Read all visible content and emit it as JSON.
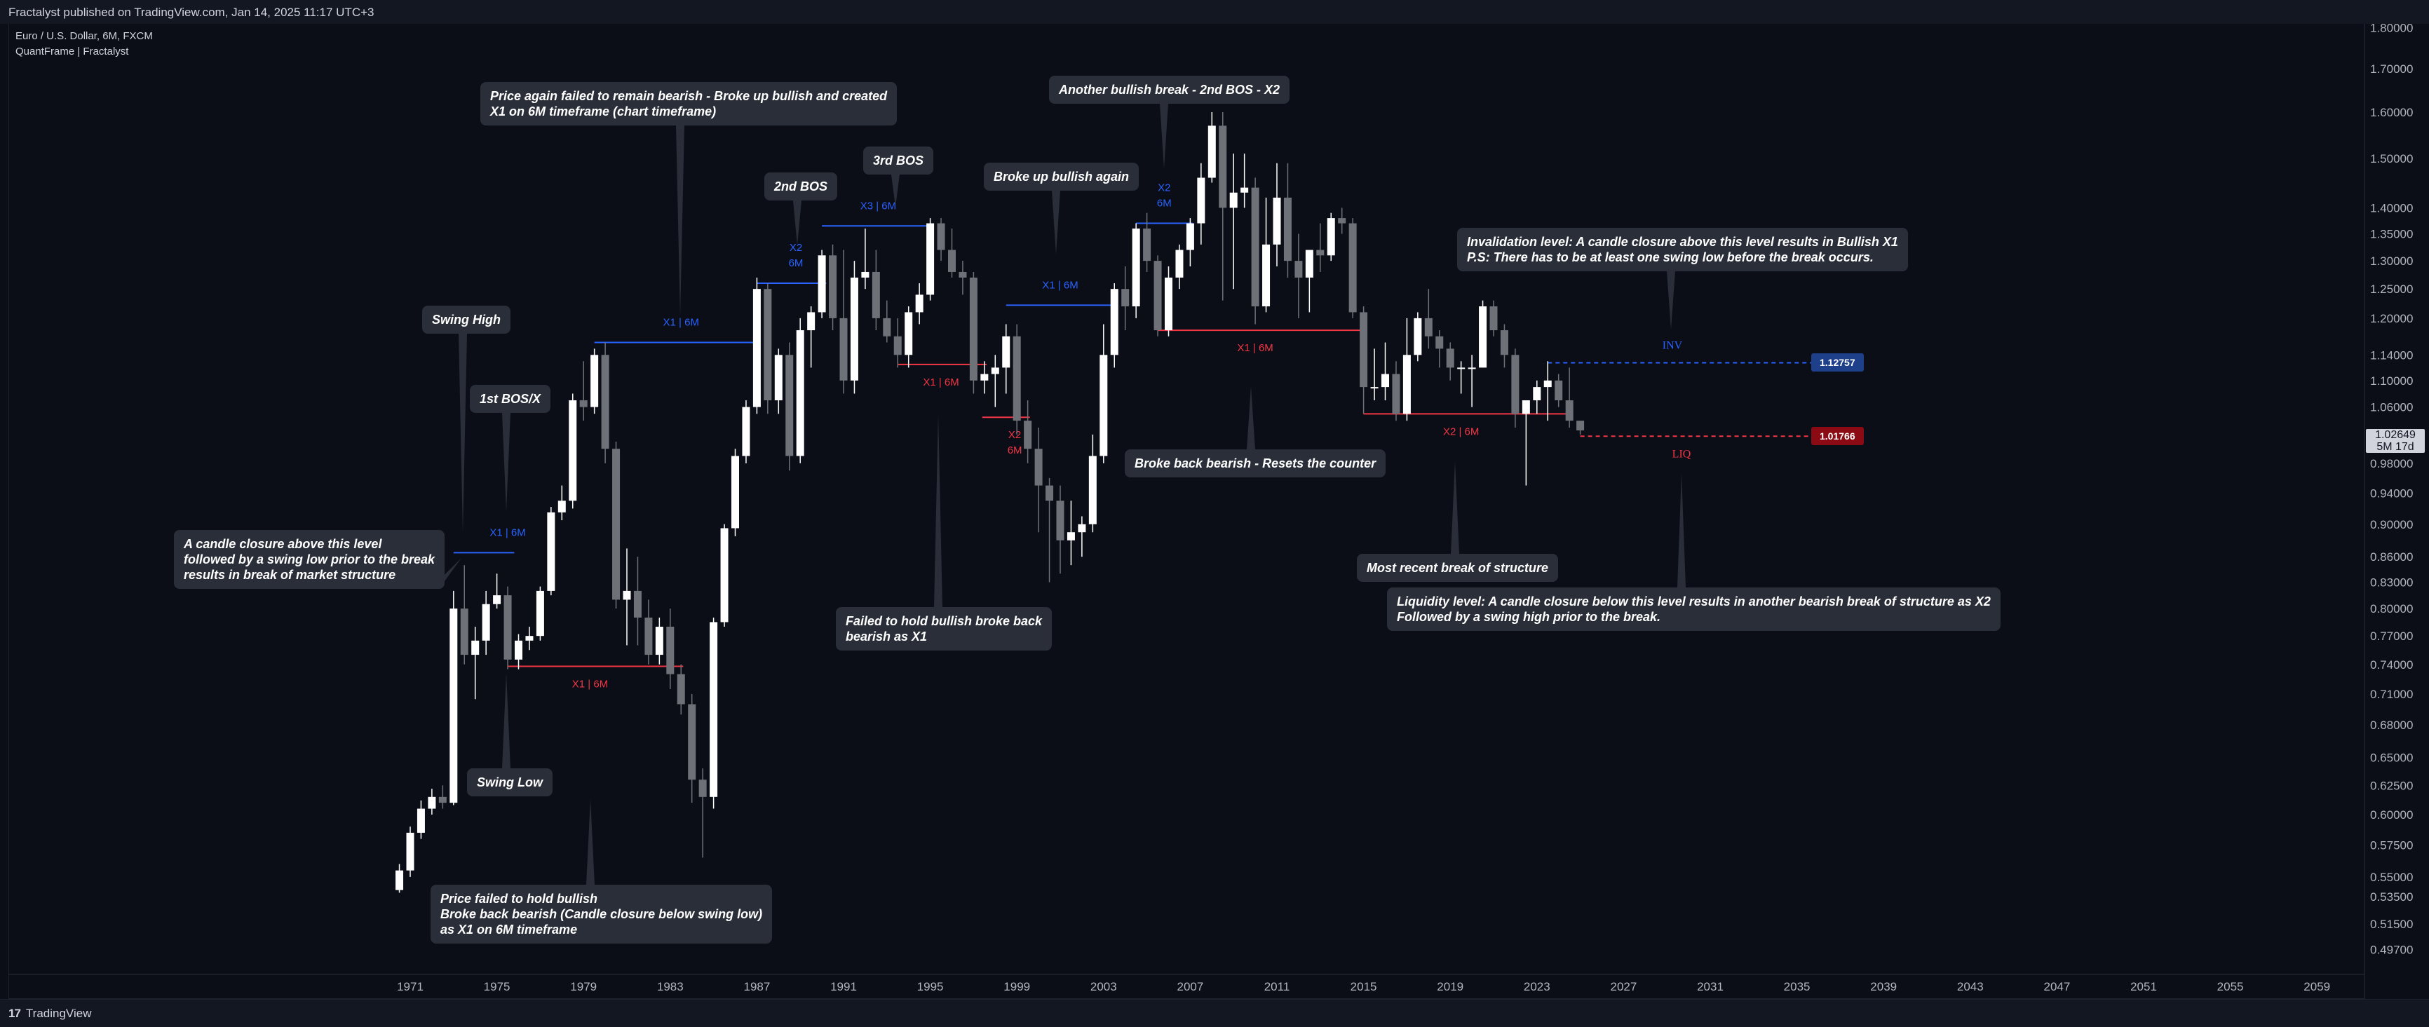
{
  "header": {
    "published": "Fractalyst published on TradingView.com, Jan 14, 2025 11:17 UTC+3",
    "symbol": "Euro / U.S. Dollar, 6M, FXCM",
    "indicator": "QuantFrame | Fractalyst"
  },
  "footer": {
    "brand": "TradingView",
    "logo_mark": "17"
  },
  "current_price": {
    "value": "1.02649",
    "countdown": "5M 17d"
  },
  "price_tags": {
    "inv": "1.12757",
    "liq": "1.01766"
  },
  "colors": {
    "background": "#0b0e17",
    "up": "#ffffff",
    "down": "#6f7178",
    "bos_bull": "#2962ff",
    "bos_bear": "#f23645",
    "label_bg": "#2a2e39",
    "inv_tag": "#1e3f8a",
    "liq_tag": "#8b0a14"
  },
  "annotations": [
    {
      "name": "ann-swing-high",
      "lines": [
        "Swing High"
      ]
    },
    {
      "name": "ann-1st-bos",
      "lines": [
        "1st BOS/X"
      ]
    },
    {
      "name": "ann-candle-closure",
      "lines": [
        "A candle closure above this level",
        "followed by a swing low prior to the break",
        "results in break of market structure"
      ]
    },
    {
      "name": "ann-swing-low",
      "lines": [
        "Swing Low"
      ]
    },
    {
      "name": "ann-failed-hold",
      "lines": [
        "Price failed to hold bullish",
        "Broke back bearish (Candle closure below swing low)",
        "as X1 on 6M timeframe"
      ]
    },
    {
      "name": "ann-price-again",
      "lines": [
        "Price again failed to remain bearish - Broke up bullish and created",
        "X1 on 6M timeframe (chart timeframe)"
      ]
    },
    {
      "name": "ann-2nd-bos",
      "lines": [
        "2nd BOS"
      ]
    },
    {
      "name": "ann-3rd-bos",
      "lines": [
        "3rd BOS"
      ]
    },
    {
      "name": "ann-failed-bullish",
      "lines": [
        "Failed to hold bullish broke back",
        "bearish as X1"
      ]
    },
    {
      "name": "ann-broke-up",
      "lines": [
        "Broke up bullish again"
      ]
    },
    {
      "name": "ann-another-bullish",
      "lines": [
        "Another bullish break - 2nd BOS - X2"
      ]
    },
    {
      "name": "ann-broke-back",
      "lines": [
        "Broke back bearish - Resets the counter"
      ]
    },
    {
      "name": "ann-most-recent",
      "lines": [
        "Most recent break of structure"
      ]
    },
    {
      "name": "ann-invalidation",
      "lines": [
        "Invalidation level: A candle closure above this level results in Bullish X1",
        "P.S: There has to be at least one swing low before the break occurs."
      ]
    },
    {
      "name": "ann-liquidity",
      "lines": [
        "Liquidity level: A candle closure below this level results in another bearish break of structure as X2",
        "Followed by a swing high prior to the break."
      ]
    }
  ],
  "chart_data": {
    "type": "candlestick",
    "title": "Euro / U.S. Dollar, 6M, FXCM",
    "y_scale": "log",
    "ylim": [
      0.48,
      1.81
    ],
    "xlim": [
      1969,
      2063
    ],
    "x_ticks": [
      "1971",
      "1975",
      "1979",
      "1983",
      "1987",
      "1991",
      "1995",
      "1999",
      "2003",
      "2007",
      "2011",
      "2015",
      "2019",
      "2023",
      "2027",
      "2031",
      "2035",
      "2039",
      "2043",
      "2047",
      "2051",
      "2055",
      "2059"
    ],
    "y_ticks": [
      "1.80000",
      "1.70000",
      "1.60000",
      "1.50000",
      "1.40000",
      "1.35000",
      "1.30000",
      "1.25000",
      "1.20000",
      "1.14000",
      "1.10000",
      "1.06000",
      "0.98000",
      "0.94000",
      "0.90000",
      "0.86000",
      "0.83000",
      "0.80000",
      "0.77000",
      "0.74000",
      "0.71000",
      "0.68000",
      "0.65000",
      "0.62500",
      "0.60000",
      "0.57500",
      "0.55000",
      "0.53500",
      "0.51500",
      "0.49700"
    ],
    "candles": [
      {
        "t": 1970.5,
        "o": 0.54,
        "h": 0.56,
        "l": 0.538,
        "c": 0.555
      },
      {
        "t": 1971.0,
        "o": 0.555,
        "h": 0.59,
        "l": 0.55,
        "c": 0.585
      },
      {
        "t": 1971.5,
        "o": 0.585,
        "h": 0.612,
        "l": 0.58,
        "c": 0.605
      },
      {
        "t": 1972.0,
        "o": 0.605,
        "h": 0.622,
        "l": 0.6,
        "c": 0.615
      },
      {
        "t": 1972.5,
        "o": 0.615,
        "h": 0.625,
        "l": 0.605,
        "c": 0.61
      },
      {
        "t": 1973.0,
        "o": 0.61,
        "h": 0.82,
        "l": 0.608,
        "c": 0.8
      },
      {
        "t": 1973.5,
        "o": 0.8,
        "h": 0.85,
        "l": 0.74,
        "c": 0.75
      },
      {
        "t": 1974.0,
        "o": 0.75,
        "h": 0.78,
        "l": 0.705,
        "c": 0.765
      },
      {
        "t": 1974.5,
        "o": 0.765,
        "h": 0.82,
        "l": 0.75,
        "c": 0.805
      },
      {
        "t": 1975.0,
        "o": 0.805,
        "h": 0.84,
        "l": 0.8,
        "c": 0.815
      },
      {
        "t": 1975.5,
        "o": 0.815,
        "h": 0.825,
        "l": 0.735,
        "c": 0.745
      },
      {
        "t": 1976.0,
        "o": 0.745,
        "h": 0.772,
        "l": 0.735,
        "c": 0.765
      },
      {
        "t": 1976.5,
        "o": 0.765,
        "h": 0.78,
        "l": 0.755,
        "c": 0.77
      },
      {
        "t": 1977.0,
        "o": 0.77,
        "h": 0.825,
        "l": 0.765,
        "c": 0.82
      },
      {
        "t": 1977.5,
        "o": 0.82,
        "h": 0.922,
        "l": 0.815,
        "c": 0.915
      },
      {
        "t": 1978.0,
        "o": 0.915,
        "h": 0.95,
        "l": 0.905,
        "c": 0.93
      },
      {
        "t": 1978.5,
        "o": 0.93,
        "h": 1.08,
        "l": 0.92,
        "c": 1.07
      },
      {
        "t": 1979.0,
        "o": 1.07,
        "h": 1.13,
        "l": 1.04,
        "c": 1.06
      },
      {
        "t": 1979.5,
        "o": 1.06,
        "h": 1.15,
        "l": 1.05,
        "c": 1.14
      },
      {
        "t": 1980.0,
        "o": 1.14,
        "h": 1.16,
        "l": 0.98,
        "c": 1.0
      },
      {
        "t": 1980.5,
        "o": 1.0,
        "h": 1.01,
        "l": 0.8,
        "c": 0.81
      },
      {
        "t": 1981.0,
        "o": 0.81,
        "h": 0.87,
        "l": 0.76,
        "c": 0.82
      },
      {
        "t": 1981.5,
        "o": 0.82,
        "h": 0.86,
        "l": 0.76,
        "c": 0.79
      },
      {
        "t": 1982.0,
        "o": 0.79,
        "h": 0.81,
        "l": 0.74,
        "c": 0.75
      },
      {
        "t": 1982.5,
        "o": 0.75,
        "h": 0.79,
        "l": 0.74,
        "c": 0.78
      },
      {
        "t": 1983.0,
        "o": 0.78,
        "h": 0.8,
        "l": 0.715,
        "c": 0.73
      },
      {
        "t": 1983.5,
        "o": 0.73,
        "h": 0.74,
        "l": 0.69,
        "c": 0.7
      },
      {
        "t": 1984.0,
        "o": 0.7,
        "h": 0.71,
        "l": 0.61,
        "c": 0.63
      },
      {
        "t": 1984.5,
        "o": 0.63,
        "h": 0.64,
        "l": 0.565,
        "c": 0.615
      },
      {
        "t": 1985.0,
        "o": 0.615,
        "h": 0.79,
        "l": 0.605,
        "c": 0.785
      },
      {
        "t": 1985.5,
        "o": 0.785,
        "h": 0.9,
        "l": 0.78,
        "c": 0.895
      },
      {
        "t": 1986.0,
        "o": 0.895,
        "h": 1.0,
        "l": 0.885,
        "c": 0.99
      },
      {
        "t": 1986.5,
        "o": 0.99,
        "h": 1.07,
        "l": 0.98,
        "c": 1.06
      },
      {
        "t": 1987.0,
        "o": 1.06,
        "h": 1.27,
        "l": 1.05,
        "c": 1.25
      },
      {
        "t": 1987.5,
        "o": 1.25,
        "h": 1.26,
        "l": 1.05,
        "c": 1.07
      },
      {
        "t": 1988.0,
        "o": 1.07,
        "h": 1.15,
        "l": 1.05,
        "c": 1.14
      },
      {
        "t": 1988.5,
        "o": 1.14,
        "h": 1.16,
        "l": 0.97,
        "c": 0.99
      },
      {
        "t": 1989.0,
        "o": 0.99,
        "h": 1.2,
        "l": 0.98,
        "c": 1.18
      },
      {
        "t": 1989.5,
        "o": 1.18,
        "h": 1.22,
        "l": 1.12,
        "c": 1.21
      },
      {
        "t": 1990.0,
        "o": 1.21,
        "h": 1.32,
        "l": 1.2,
        "c": 1.31
      },
      {
        "t": 1990.5,
        "o": 1.31,
        "h": 1.33,
        "l": 1.18,
        "c": 1.2
      },
      {
        "t": 1991.0,
        "o": 1.2,
        "h": 1.32,
        "l": 1.08,
        "c": 1.1
      },
      {
        "t": 1991.5,
        "o": 1.1,
        "h": 1.3,
        "l": 1.08,
        "c": 1.27
      },
      {
        "t": 1992.0,
        "o": 1.27,
        "h": 1.36,
        "l": 1.25,
        "c": 1.28
      },
      {
        "t": 1992.5,
        "o": 1.28,
        "h": 1.32,
        "l": 1.18,
        "c": 1.2
      },
      {
        "t": 1993.0,
        "o": 1.2,
        "h": 1.23,
        "l": 1.16,
        "c": 1.17
      },
      {
        "t": 1993.5,
        "o": 1.17,
        "h": 1.2,
        "l": 1.12,
        "c": 1.14
      },
      {
        "t": 1994.0,
        "o": 1.14,
        "h": 1.22,
        "l": 1.12,
        "c": 1.21
      },
      {
        "t": 1994.5,
        "o": 1.21,
        "h": 1.26,
        "l": 1.19,
        "c": 1.24
      },
      {
        "t": 1995.0,
        "o": 1.24,
        "h": 1.38,
        "l": 1.23,
        "c": 1.37
      },
      {
        "t": 1995.5,
        "o": 1.37,
        "h": 1.38,
        "l": 1.3,
        "c": 1.32
      },
      {
        "t": 1996.0,
        "o": 1.32,
        "h": 1.36,
        "l": 1.27,
        "c": 1.28
      },
      {
        "t": 1996.5,
        "o": 1.28,
        "h": 1.3,
        "l": 1.24,
        "c": 1.27
      },
      {
        "t": 1997.0,
        "o": 1.27,
        "h": 1.28,
        "l": 1.08,
        "c": 1.1
      },
      {
        "t": 1997.5,
        "o": 1.1,
        "h": 1.13,
        "l": 1.08,
        "c": 1.11
      },
      {
        "t": 1998.0,
        "o": 1.11,
        "h": 1.14,
        "l": 1.06,
        "c": 1.12
      },
      {
        "t": 1998.5,
        "o": 1.12,
        "h": 1.19,
        "l": 1.08,
        "c": 1.17
      },
      {
        "t": 1999.0,
        "o": 1.17,
        "h": 1.19,
        "l": 1.02,
        "c": 1.04
      },
      {
        "t": 1999.5,
        "o": 1.04,
        "h": 1.07,
        "l": 0.98,
        "c": 1.0
      },
      {
        "t": 2000.0,
        "o": 1.0,
        "h": 1.03,
        "l": 0.89,
        "c": 0.95
      },
      {
        "t": 2000.5,
        "o": 0.95,
        "h": 0.96,
        "l": 0.83,
        "c": 0.93
      },
      {
        "t": 2001.0,
        "o": 0.93,
        "h": 0.95,
        "l": 0.84,
        "c": 0.88
      },
      {
        "t": 2001.5,
        "o": 0.88,
        "h": 0.93,
        "l": 0.85,
        "c": 0.89
      },
      {
        "t": 2002.0,
        "o": 0.89,
        "h": 0.91,
        "l": 0.86,
        "c": 0.9
      },
      {
        "t": 2002.5,
        "o": 0.9,
        "h": 1.02,
        "l": 0.89,
        "c": 0.99
      },
      {
        "t": 2003.0,
        "o": 0.99,
        "h": 1.19,
        "l": 0.98,
        "c": 1.14
      },
      {
        "t": 2003.5,
        "o": 1.14,
        "h": 1.26,
        "l": 1.12,
        "c": 1.25
      },
      {
        "t": 2004.0,
        "o": 1.25,
        "h": 1.29,
        "l": 1.18,
        "c": 1.22
      },
      {
        "t": 2004.5,
        "o": 1.22,
        "h": 1.37,
        "l": 1.2,
        "c": 1.36
      },
      {
        "t": 2005.0,
        "o": 1.36,
        "h": 1.39,
        "l": 1.28,
        "c": 1.3
      },
      {
        "t": 2005.5,
        "o": 1.3,
        "h": 1.31,
        "l": 1.17,
        "c": 1.18
      },
      {
        "t": 2006.0,
        "o": 1.18,
        "h": 1.29,
        "l": 1.17,
        "c": 1.27
      },
      {
        "t": 2006.5,
        "o": 1.27,
        "h": 1.33,
        "l": 1.25,
        "c": 1.32
      },
      {
        "t": 2007.0,
        "o": 1.32,
        "h": 1.38,
        "l": 1.29,
        "c": 1.37
      },
      {
        "t": 2007.5,
        "o": 1.37,
        "h": 1.49,
        "l": 1.33,
        "c": 1.46
      },
      {
        "t": 2008.0,
        "o": 1.46,
        "h": 1.6,
        "l": 1.45,
        "c": 1.57
      },
      {
        "t": 2008.5,
        "o": 1.57,
        "h": 1.6,
        "l": 1.23,
        "c": 1.4
      },
      {
        "t": 2009.0,
        "o": 1.4,
        "h": 1.51,
        "l": 1.25,
        "c": 1.43
      },
      {
        "t": 2009.5,
        "o": 1.43,
        "h": 1.51,
        "l": 1.4,
        "c": 1.44
      },
      {
        "t": 2010.0,
        "o": 1.44,
        "h": 1.46,
        "l": 1.19,
        "c": 1.22
      },
      {
        "t": 2010.5,
        "o": 1.22,
        "h": 1.42,
        "l": 1.21,
        "c": 1.33
      },
      {
        "t": 2011.0,
        "o": 1.33,
        "h": 1.49,
        "l": 1.29,
        "c": 1.42
      },
      {
        "t": 2011.5,
        "o": 1.42,
        "h": 1.49,
        "l": 1.27,
        "c": 1.3
      },
      {
        "t": 2012.0,
        "o": 1.3,
        "h": 1.35,
        "l": 1.2,
        "c": 1.27
      },
      {
        "t": 2012.5,
        "o": 1.27,
        "h": 1.32,
        "l": 1.21,
        "c": 1.32
      },
      {
        "t": 2013.0,
        "o": 1.32,
        "h": 1.37,
        "l": 1.28,
        "c": 1.31
      },
      {
        "t": 2013.5,
        "o": 1.31,
        "h": 1.39,
        "l": 1.3,
        "c": 1.38
      },
      {
        "t": 2014.0,
        "o": 1.38,
        "h": 1.4,
        "l": 1.35,
        "c": 1.37
      },
      {
        "t": 2014.5,
        "o": 1.37,
        "h": 1.38,
        "l": 1.2,
        "c": 1.21
      },
      {
        "t": 2015.0,
        "o": 1.21,
        "h": 1.22,
        "l": 1.05,
        "c": 1.09
      },
      {
        "t": 2015.5,
        "o": 1.09,
        "h": 1.15,
        "l": 1.07,
        "c": 1.09
      },
      {
        "t": 2016.0,
        "o": 1.09,
        "h": 1.16,
        "l": 1.07,
        "c": 1.11
      },
      {
        "t": 2016.5,
        "o": 1.11,
        "h": 1.13,
        "l": 1.04,
        "c": 1.05
      },
      {
        "t": 2017.0,
        "o": 1.05,
        "h": 1.2,
        "l": 1.04,
        "c": 1.14
      },
      {
        "t": 2017.5,
        "o": 1.14,
        "h": 1.21,
        "l": 1.13,
        "c": 1.2
      },
      {
        "t": 2018.0,
        "o": 1.2,
        "h": 1.25,
        "l": 1.15,
        "c": 1.17
      },
      {
        "t": 2018.5,
        "o": 1.17,
        "h": 1.18,
        "l": 1.12,
        "c": 1.15
      },
      {
        "t": 2019.0,
        "o": 1.15,
        "h": 1.16,
        "l": 1.1,
        "c": 1.12
      },
      {
        "t": 2019.5,
        "o": 1.12,
        "h": 1.13,
        "l": 1.08,
        "c": 1.12
      },
      {
        "t": 2020.0,
        "o": 1.12,
        "h": 1.14,
        "l": 1.06,
        "c": 1.12
      },
      {
        "t": 2020.5,
        "o": 1.12,
        "h": 1.23,
        "l": 1.12,
        "c": 1.22
      },
      {
        "t": 2021.0,
        "o": 1.22,
        "h": 1.23,
        "l": 1.17,
        "c": 1.18
      },
      {
        "t": 2021.5,
        "o": 1.18,
        "h": 1.19,
        "l": 1.12,
        "c": 1.14
      },
      {
        "t": 2022.0,
        "o": 1.14,
        "h": 1.15,
        "l": 1.03,
        "c": 1.05
      },
      {
        "t": 2022.5,
        "o": 1.05,
        "h": 1.06,
        "l": 0.95,
        "c": 1.07
      },
      {
        "t": 2023.0,
        "o": 1.07,
        "h": 1.1,
        "l": 1.05,
        "c": 1.09
      },
      {
        "t": 2023.5,
        "o": 1.09,
        "h": 1.13,
        "l": 1.04,
        "c": 1.1
      },
      {
        "t": 2024.0,
        "o": 1.1,
        "h": 1.11,
        "l": 1.06,
        "c": 1.07
      },
      {
        "t": 2024.5,
        "o": 1.07,
        "h": 1.12,
        "l": 1.03,
        "c": 1.04
      },
      {
        "t": 2025.0,
        "o": 1.04,
        "h": 1.04,
        "l": 1.02,
        "c": 1.026
      }
    ],
    "levels": [
      {
        "name": "x1-6m-1976",
        "label": "X1 | 6M",
        "price": 0.865,
        "x1": 1973.0,
        "x2": 1975.8,
        "dir": "bull",
        "label_t": 1975.5
      },
      {
        "name": "x1-6m-1983",
        "label": "X1 | 6M",
        "price": 0.738,
        "x1": 1975.5,
        "x2": 1983.6,
        "dir": "bear",
        "label_t": 1979.3
      },
      {
        "name": "x1-6m-1986",
        "label": "X1 | 6M",
        "price": 1.16,
        "x1": 1979.5,
        "x2": 1987.1,
        "dir": "bull",
        "label_t": 1983.5
      },
      {
        "name": "x2-6m-1988",
        "label": "X2",
        "label2": "6M",
        "price": 1.26,
        "x1": 1987.0,
        "x2": 1990.2,
        "dir": "bull",
        "label_t": 1988.8
      },
      {
        "name": "x3-6m-1992",
        "label": "X3 | 6M",
        "price": 1.365,
        "x1": 1990.0,
        "x2": 1995.1,
        "dir": "bull",
        "label_t": 1992.6
      },
      {
        "name": "x1-6m-1997",
        "label": "X1 | 6M",
        "price": 1.125,
        "x1": 1993.5,
        "x2": 1997.6,
        "dir": "bear",
        "label_t": 1995.5
      },
      {
        "name": "x2-6m-1999",
        "label": "X2",
        "label2": "6M",
        "price": 1.045,
        "x1": 1997.4,
        "x2": 1999.6,
        "dir": "bear",
        "label_t": 1998.9
      },
      {
        "name": "x1-6m-2000",
        "label": "X1 | 6M",
        "price": 1.222,
        "x1": 1998.5,
        "x2": 2003.5,
        "dir": "bull",
        "label_t": 2001.0
      },
      {
        "name": "x2-6m-2004",
        "label": "X2",
        "label2": "6M",
        "price": 1.37,
        "x1": 2004.5,
        "x2": 2007.1,
        "dir": "bull",
        "label_t": 2005.8
      },
      {
        "name": "x1-6m-2012",
        "label": "X1 | 6M",
        "price": 1.18,
        "x1": 2005.5,
        "x2": 2014.9,
        "dir": "bear",
        "label_t": 2010.0
      },
      {
        "name": "x2-6m-2019",
        "label": "X2 | 6M",
        "price": 1.05,
        "x1": 2015.0,
        "x2": 2024.6,
        "dir": "bear",
        "label_t": 2019.5
      }
    ],
    "inv_level": {
      "label": "INV",
      "price": 1.12757,
      "x1": 2023.5,
      "x2": 2036.5
    },
    "liq_level": {
      "label": "LIQ",
      "price": 1.01766,
      "x1": 2025.0,
      "x2": 2036.5
    }
  }
}
